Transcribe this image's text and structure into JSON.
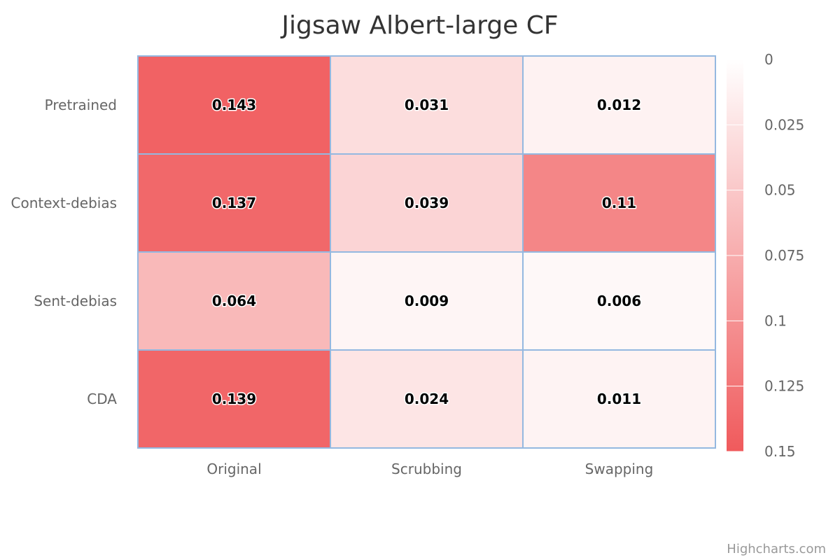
{
  "chart_data": {
    "type": "heatmap",
    "title": "Jigsaw Albert-large CF",
    "x_categories": [
      "Original",
      "Scrubbing",
      "Swapping"
    ],
    "y_categories": [
      "Pretrained",
      "Context-debias",
      "Sent-debias",
      "CDA"
    ],
    "values": [
      [
        0.143,
        0.031,
        0.012
      ],
      [
        0.137,
        0.039,
        0.11
      ],
      [
        0.064,
        0.009,
        0.006
      ],
      [
        0.139,
        0.024,
        0.011
      ]
    ],
    "value_labels": [
      [
        "0.143",
        "0.031",
        "0.012"
      ],
      [
        "0.137",
        "0.039",
        "0.11"
      ],
      [
        "0.064",
        "0.009",
        "0.006"
      ],
      [
        "0.139",
        "0.024",
        "0.011"
      ]
    ],
    "color_axis": {
      "min": 0,
      "max": 0.15,
      "min_color": "#ffffff",
      "max_color": "#f05a5c",
      "ticks": [
        "0",
        "0.025",
        "0.05",
        "0.075",
        "0.1",
        "0.125",
        "0.15"
      ],
      "reversed": true
    },
    "cell_border_color": "#94b8e0",
    "grid": false,
    "legend_position": "right"
  },
  "credits": "Highcharts.com"
}
